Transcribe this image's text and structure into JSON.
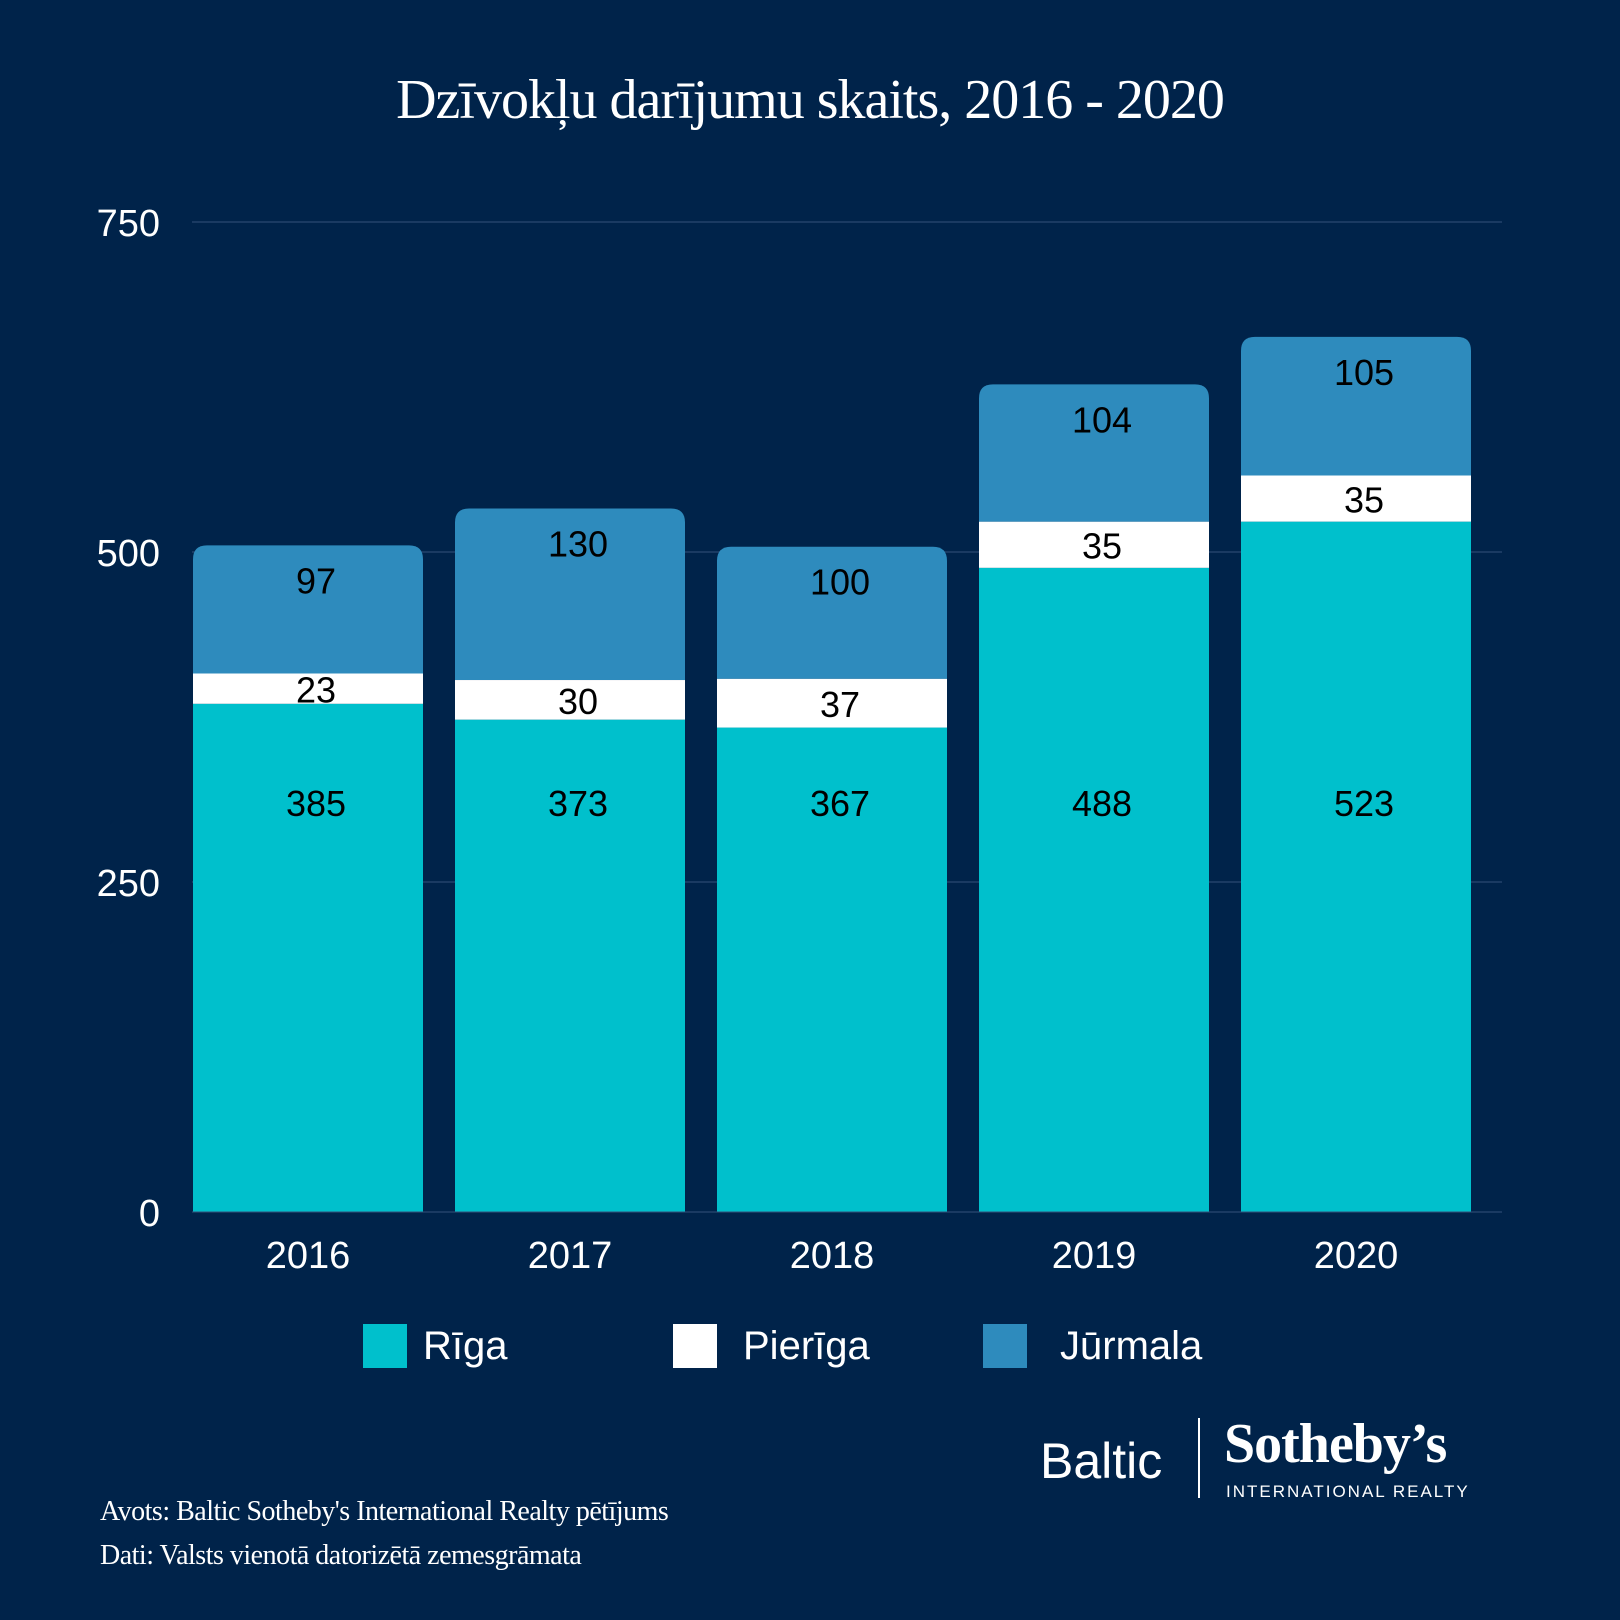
{
  "title": "Dzīvokļu darījumu skaits, 2016 - 2020",
  "chart_data": {
    "type": "bar",
    "stacked": true,
    "title": "Dzīvokļu darījumu skaits, 2016 - 2020",
    "categories": [
      "2016",
      "2017",
      "2018",
      "2019",
      "2020"
    ],
    "series": [
      {
        "name": "Rīga",
        "values": [
          385,
          373,
          367,
          488,
          523
        ],
        "color": "#00c0cc"
      },
      {
        "name": "Pierīga",
        "values": [
          23,
          30,
          37,
          35,
          35
        ],
        "color": "#ffffff"
      },
      {
        "name": "Jūrmala",
        "values": [
          97,
          130,
          100,
          104,
          105
        ],
        "color": "#2e8bbd"
      }
    ],
    "ylim": [
      0,
      750
    ],
    "yticks": [
      0,
      250,
      500,
      750
    ],
    "grid": true,
    "legend_position": "bottom",
    "label_color": "#000000"
  },
  "logo": {
    "baltic": "Baltic",
    "sothebys": "Sotheby’s",
    "tagline": "INTERNATIONAL REALTY"
  },
  "footer": {
    "source": "Avots: Baltic Sotheby's International Realty pētījums",
    "data": "Dati: Valsts vienotā datorizētā zemesgrāmata"
  }
}
